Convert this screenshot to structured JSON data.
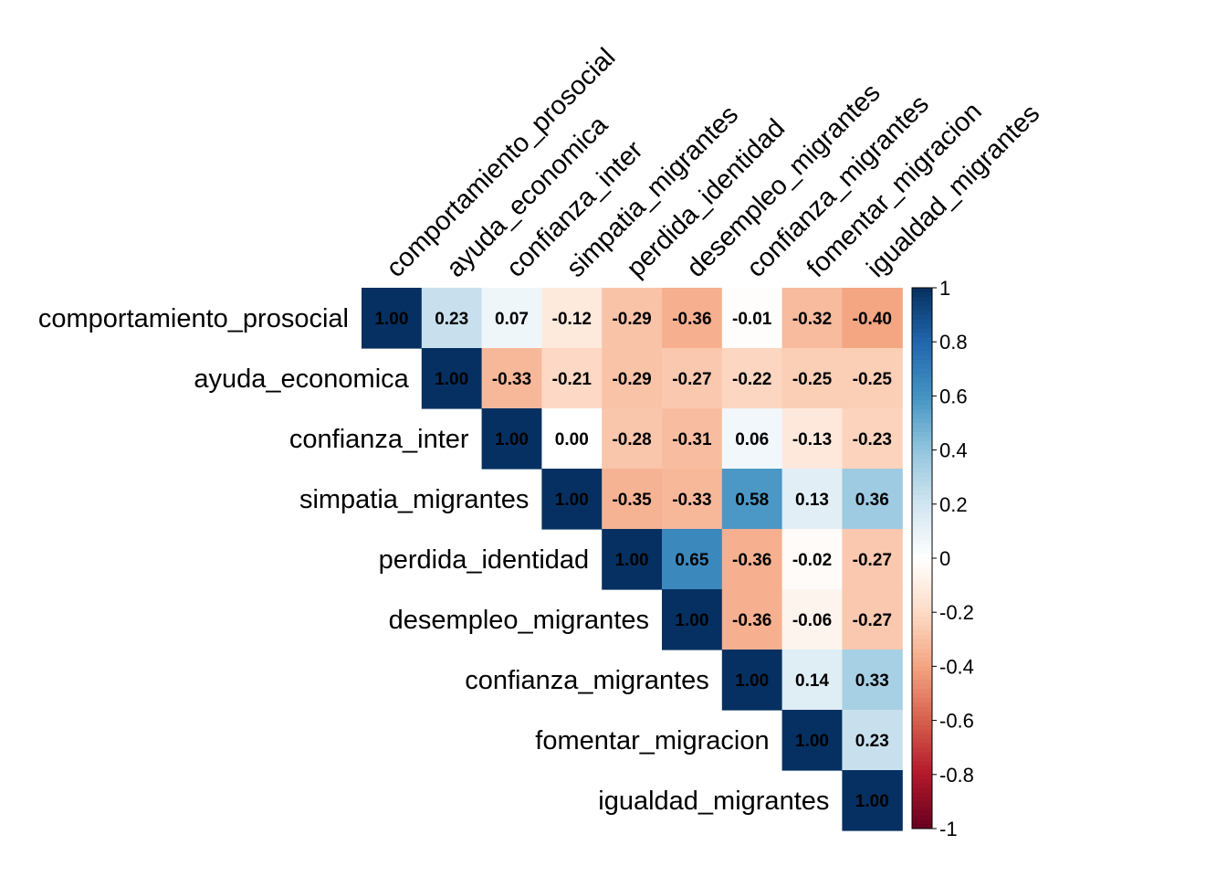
{
  "chart_data": {
    "type": "heatmap",
    "variables": [
      "comportamiento_prosocial",
      "ayuda_economica",
      "confianza_inter",
      "simpatia_migrantes",
      "perdida_identidad",
      "desempleo_migrantes",
      "confianza_migrantes",
      "fomentar_migracion",
      "igualdad_migrantes"
    ],
    "matrix": [
      [
        1.0,
        0.23,
        0.07,
        -0.12,
        -0.29,
        -0.36,
        -0.01,
        -0.32,
        -0.4
      ],
      [
        null,
        1.0,
        -0.33,
        -0.21,
        -0.29,
        -0.27,
        -0.22,
        -0.25,
        -0.25
      ],
      [
        null,
        null,
        1.0,
        0.0,
        -0.28,
        -0.31,
        0.06,
        -0.13,
        -0.23
      ],
      [
        null,
        null,
        null,
        1.0,
        -0.35,
        -0.33,
        0.58,
        0.13,
        0.36
      ],
      [
        null,
        null,
        null,
        null,
        1.0,
        0.65,
        -0.36,
        -0.02,
        -0.27
      ],
      [
        null,
        null,
        null,
        null,
        null,
        1.0,
        -0.36,
        -0.06,
        -0.27
      ],
      [
        null,
        null,
        null,
        null,
        null,
        null,
        1.0,
        0.14,
        0.33
      ],
      [
        null,
        null,
        null,
        null,
        null,
        null,
        null,
        1.0,
        0.23
      ],
      [
        null,
        null,
        null,
        null,
        null,
        null,
        null,
        null,
        1.0
      ]
    ],
    "triangle": "upper",
    "color_scale": {
      "range": [
        -1,
        1
      ],
      "ticks": [
        1,
        0.8,
        0.6,
        0.4,
        0.2,
        0,
        -0.2,
        -0.4,
        -0.6,
        -0.8,
        -1
      ],
      "tick_labels": [
        "1",
        "0.8",
        "0.6",
        "0.4",
        "0.2",
        "0",
        "-0.2",
        "-0.4",
        "-0.6",
        "-0.8",
        "-1"
      ],
      "colors": [
        "#67001F",
        "#B2182B",
        "#D6604D",
        "#F4A582",
        "#FDDBC7",
        "#FFFFFF",
        "#D1E5F0",
        "#92C5DE",
        "#4393C3",
        "#2166AC",
        "#053061"
      ]
    },
    "legend_position": "right",
    "grid": false
  }
}
